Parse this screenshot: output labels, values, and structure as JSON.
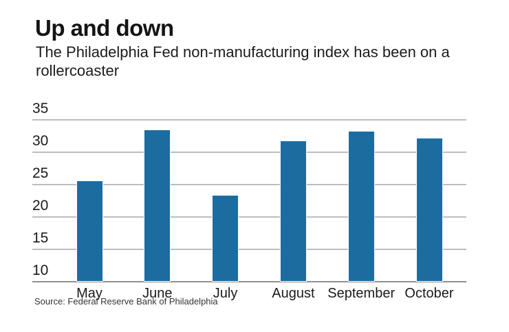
{
  "header": {
    "title": "Up and down",
    "subtitle": "The Philadelphia Fed non-manufacturing index has been on a rollercoaster"
  },
  "footer": {
    "source": "Source: Federal Reserve Bank of Philadelphia"
  },
  "chart_data": {
    "type": "bar",
    "title": "Up and down",
    "subtitle": "The Philadelphia Fed non-manufacturing index has been on a rollercoaster",
    "categories": [
      "May",
      "June",
      "July",
      "August",
      "September",
      "October"
    ],
    "values": [
      25.5,
      33.4,
      23.2,
      31.7,
      33.1,
      32.1
    ],
    "xlabel": "",
    "ylabel": "",
    "ylim": [
      10,
      35
    ],
    "yticks": [
      35,
      30,
      25,
      20,
      15,
      10
    ],
    "grid": true,
    "legend": "none",
    "bar_color": "#1d6ca0",
    "gridline_color": "#bdbdbd",
    "baseline_color": "#8f8f8f",
    "source": "Source: Federal Reserve Bank of Philadelphia"
  }
}
